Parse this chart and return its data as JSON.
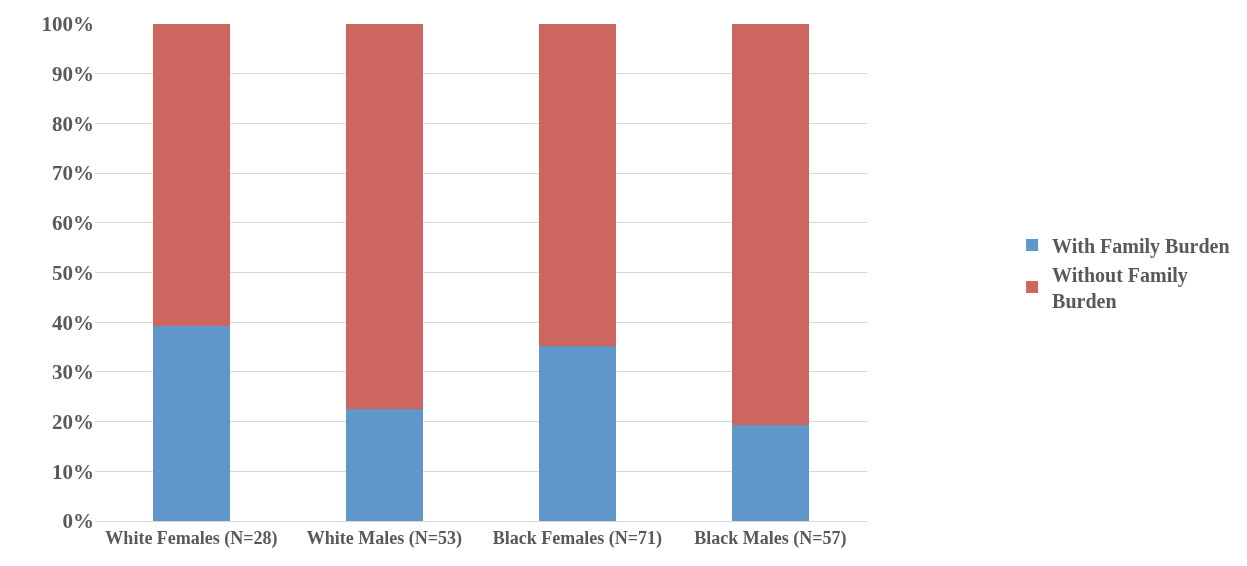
{
  "chart_data": {
    "type": "bar",
    "stacked": true,
    "categories": [
      "White Females (N=28)",
      "White Males (N=53)",
      "Black Females (N=71)",
      "Black Males (N=57)"
    ],
    "series": [
      {
        "name": "With Family Burden",
        "color": "#5f97cb",
        "values": [
          39.3,
          22.6,
          35.2,
          19.3
        ]
      },
      {
        "name": "Without Family Burden",
        "color": "#cd665e",
        "values": [
          60.7,
          77.4,
          64.8,
          80.7
        ]
      }
    ],
    "ylim": [
      0,
      100
    ],
    "yticks": [
      {
        "value": 0,
        "label": "0%"
      },
      {
        "value": 10,
        "label": "10%"
      },
      {
        "value": 20,
        "label": "20%"
      },
      {
        "value": 30,
        "label": "30%"
      },
      {
        "value": 40,
        "label": "40%"
      },
      {
        "value": 50,
        "label": "50%"
      },
      {
        "value": 60,
        "label": "60%"
      },
      {
        "value": 70,
        "label": "70%"
      },
      {
        "value": 80,
        "label": "80%"
      },
      {
        "value": 90,
        "label": "90%"
      },
      {
        "value": 100,
        "label": "100%"
      }
    ],
    "grid": "y",
    "legend": "right"
  }
}
